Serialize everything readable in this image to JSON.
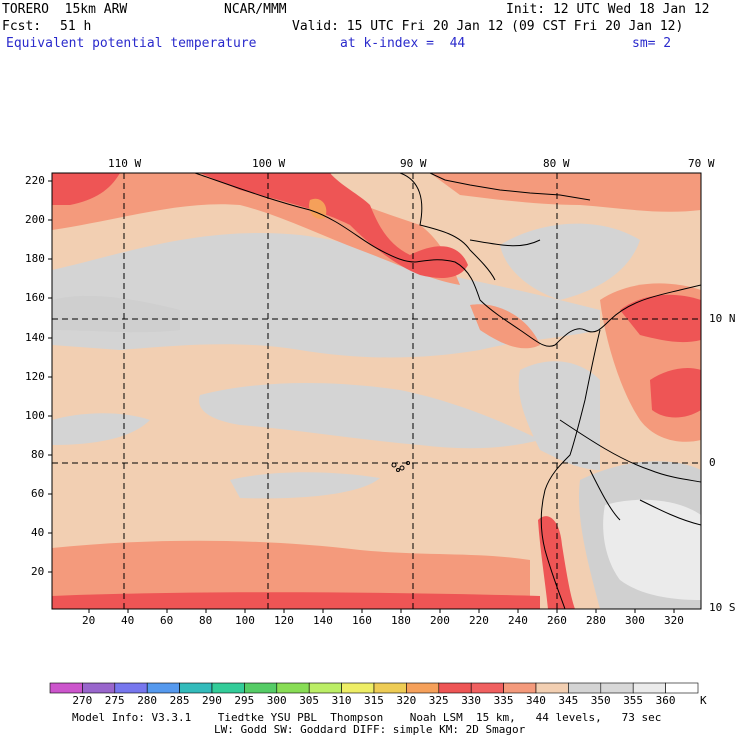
{
  "header": {
    "model": "TORERO  15km ARW",
    "center": "NCAR/MMM",
    "init": "Init: 12 UTC Wed 18 Jan 12",
    "fcst_label": "Fcst:",
    "fcst_value": "51 h",
    "valid": "Valid: 15 UTC Fri 20 Jan 12 (09 CST Fri 20 Jan 12)",
    "field": "Equivalent potential temperature",
    "level": "at k-index =  44",
    "smooth": "sm= 2"
  },
  "map": {
    "lon_labels": [
      "110 W",
      "100 W",
      "90 W",
      "80 W",
      "70 W"
    ],
    "lat_labels": [
      "10 N",
      "0",
      "10 S"
    ],
    "y_ticks": [
      "220",
      "200",
      "180",
      "160",
      "140",
      "120",
      "100",
      "80",
      "60",
      "40",
      "20"
    ],
    "x_ticks": [
      "20",
      "40",
      "60",
      "80",
      "100",
      "120",
      "140",
      "160",
      "180",
      "200",
      "220",
      "240",
      "260",
      "280",
      "300",
      "320"
    ]
  },
  "colorbar": {
    "colors": [
      "#cc55cc",
      "#9966cc",
      "#7777ee",
      "#5599ee",
      "#33bbbb",
      "#33cc99",
      "#55cc66",
      "#88dd55",
      "#bbee66",
      "#eeee66",
      "#eecc55",
      "#f5a05a",
      "#ee5555",
      "#f06060",
      "#f49a7c",
      "#f2cfb2",
      "#d4d4d4",
      "#d8d8d8",
      "#ebebeb",
      "#ffffff"
    ],
    "labels": [
      "270",
      "275",
      "280",
      "285",
      "290",
      "295",
      "300",
      "305",
      "310",
      "315",
      "320",
      "325",
      "330",
      "335",
      "340",
      "345",
      "350",
      "355",
      "360"
    ],
    "unit": "K"
  },
  "footer": {
    "line1": "Model Info: V3.3.1    Tiedtke YSU PBL  Thompson    Noah LSM  15 km,   44 levels,   73 sec",
    "line2": "LW: Godd SW: Goddard DIFF: simple KM: 2D Smagor"
  }
}
